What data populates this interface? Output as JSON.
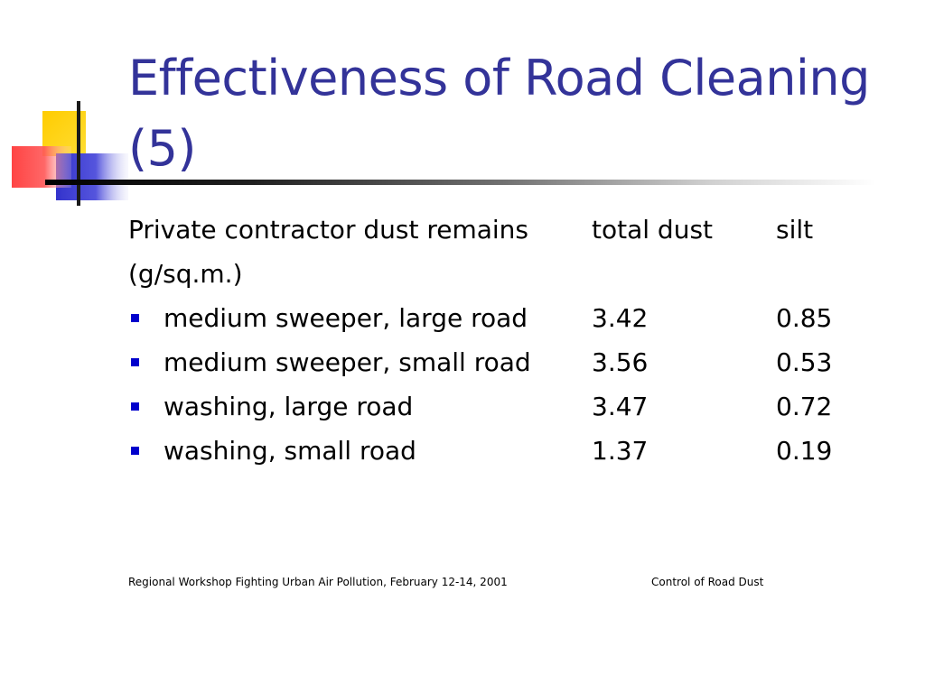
{
  "slide": {
    "title": "Effectiveness of Road Cleaning (5)",
    "header": {
      "label": "Private contractor dust remains",
      "unit": "(g/sq.m.)",
      "col_total": "total dust",
      "col_silt": "silt"
    },
    "rows": [
      {
        "label": "medium sweeper, large road",
        "total": "3.42",
        "silt": "0.85"
      },
      {
        "label": "medium sweeper, small road",
        "total": "3.56",
        "silt": "0.53"
      },
      {
        "label": "washing, large road",
        "total": "3.47",
        "silt": "0.72"
      },
      {
        "label": "washing, small road",
        "total": "1.37",
        "silt": "0.19"
      }
    ],
    "footer": {
      "left": "Regional Workshop Fighting Urban Air Pollution, February 12-14, 2001",
      "right": "Control of Road Dust"
    }
  },
  "colors": {
    "title": "#333399",
    "bullet": "#0000cc",
    "logo_yellow": "#ffcc00",
    "logo_red": "#ff3333",
    "logo_blue": "#3333cc"
  }
}
